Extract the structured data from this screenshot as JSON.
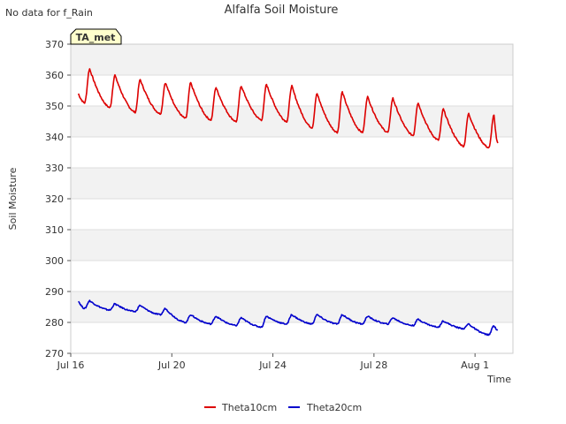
{
  "notice": "No data for f_Rain",
  "chart_data": {
    "type": "line",
    "title": "Alfalfa Soil Moisture",
    "xlabel": "Time",
    "ylabel": "Soil Moisture",
    "badge": "TA_met",
    "ylim": [
      270,
      370
    ],
    "yticks": [
      270,
      280,
      290,
      300,
      310,
      320,
      330,
      340,
      350,
      360,
      370
    ],
    "xlim": [
      0,
      17.5
    ],
    "xticks": [
      {
        "label": "Jul 16",
        "day": 0
      },
      {
        "label": "Jul 20",
        "day": 4
      },
      {
        "label": "Jul 24",
        "day": 8
      },
      {
        "label": "Jul 28",
        "day": 12
      },
      {
        "label": "Aug 1",
        "day": 16
      }
    ],
    "start_day": 0.3,
    "end_day": 16.9,
    "series": [
      {
        "name": "Theta10cm",
        "color": "#dd0000",
        "daily_peaks": [
          362,
          360,
          358.5,
          357.5,
          357.5,
          356,
          356.5,
          357,
          356.5,
          354,
          354.5,
          353,
          352.5,
          351,
          349,
          347.5,
          347
        ],
        "daily_troughs": [
          351,
          349.5,
          348,
          347.5,
          346,
          345.5,
          345,
          345.5,
          345,
          343,
          341.5,
          341.5,
          341.5,
          340.5,
          339,
          337,
          336.5
        ],
        "start_value": 354,
        "end_value": 338
      },
      {
        "name": "Theta20cm",
        "color": "#0000cc",
        "daily_peaks": [
          287,
          286,
          285.5,
          284.5,
          282.5,
          282,
          281.5,
          282,
          282.5,
          282.5,
          282.5,
          282,
          281.5,
          281,
          280.5,
          279.5,
          279
        ],
        "daily_troughs": [
          284.5,
          284,
          283.5,
          282.5,
          280,
          279.5,
          279,
          278.5,
          279.5,
          279.5,
          279.5,
          279.5,
          279.5,
          279,
          278.5,
          278,
          276
        ],
        "start_value": 287,
        "end_value": 277.5
      }
    ],
    "legend_position": "bottom-center"
  }
}
